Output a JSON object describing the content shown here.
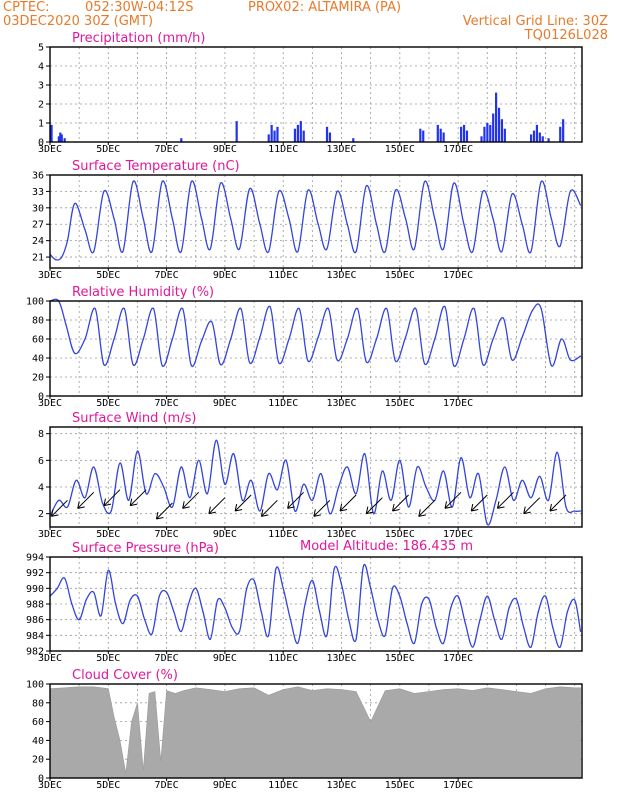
{
  "header": {
    "org": "CPTEC:",
    "coords": "052:30W-04:12S",
    "station": "PROX02: ALTAMIRA (PA)",
    "run": "03DEC2020 30Z (GMT)",
    "grid_note": "Vertical Grid Line: 30Z",
    "code": "TQ0126L028",
    "model_altitude": "Model Altitude: 186.435 m"
  },
  "date_labels": [
    "3DEC",
    "5DEC",
    "7DEC",
    "9DEC",
    "11DEC",
    "13DEC",
    "15DEC",
    "17DEC"
  ],
  "colors": {
    "line": "#3344dd",
    "bar": "#2233ee",
    "cloud": "#a9a9a9",
    "title": "#e0189a",
    "header": "#e87a2a"
  },
  "chart_data": [
    {
      "type": "bar",
      "title": "Precipitation (mm/h)",
      "ylim": [
        0,
        5
      ],
      "yticks": [
        "0",
        "1",
        "2",
        "3",
        "4",
        "5"
      ],
      "x_unit": "days since 03DEC 03Z",
      "x": [
        0.05,
        0.3,
        0.35,
        0.4,
        0.5,
        4.5,
        6.4,
        7.5,
        7.6,
        7.7,
        7.8,
        8.4,
        8.5,
        8.6,
        8.7,
        9.5,
        9.6,
        10.4,
        12.7,
        12.8,
        13.3,
        13.4,
        13.5,
        14.1,
        14.2,
        14.3,
        14.8,
        14.9,
        15.0,
        15.1,
        15.2,
        15.3,
        15.4,
        15.5,
        15.6,
        16.5,
        16.6,
        16.7,
        16.8,
        16.9,
        17.1,
        17.5,
        17.6
      ],
      "values": [
        0.9,
        0.3,
        0.5,
        0.4,
        0.2,
        0.2,
        1.1,
        0.4,
        0.9,
        0.6,
        0.8,
        0.7,
        0.9,
        1.1,
        0.6,
        0.8,
        0.5,
        0.2,
        0.7,
        0.6,
        0.9,
        0.7,
        0.5,
        0.8,
        0.9,
        0.6,
        0.3,
        0.8,
        1.0,
        0.9,
        1.5,
        2.6,
        1.8,
        1.2,
        0.7,
        0.4,
        0.6,
        0.9,
        0.5,
        0.3,
        0.2,
        0.8,
        1.2
      ]
    },
    {
      "type": "line",
      "title": "Surface Temperature (nC)",
      "ylim": [
        19,
        36
      ],
      "yticks": [
        "21",
        "24",
        "27",
        "30",
        "33",
        "36"
      ],
      "x_unit": "days since 03DEC 03Z",
      "x": [
        0,
        0.2,
        0.4,
        0.6,
        0.85,
        1.2,
        1.5,
        1.85,
        2.2,
        2.5,
        2.85,
        3.2,
        3.5,
        3.85,
        4.2,
        4.5,
        4.85,
        5.2,
        5.5,
        5.85,
        6.2,
        6.5,
        6.85,
        7.2,
        7.5,
        7.85,
        8.2,
        8.5,
        8.85,
        9.2,
        9.5,
        9.85,
        10.2,
        10.5,
        10.85,
        11.2,
        11.5,
        11.85,
        12.2,
        12.5,
        12.85,
        13.2,
        13.5,
        13.85,
        14.2,
        14.5,
        14.85,
        15.2,
        15.5,
        15.85,
        16.2,
        16.5,
        16.85,
        17.2,
        17.5,
        17.85,
        18.2
      ],
      "values": [
        21.5,
        20.5,
        21,
        24,
        30.8,
        26,
        22,
        33,
        28,
        22,
        34.8,
        28,
        22,
        34.8,
        28,
        22,
        34.8,
        28,
        22.5,
        34.5,
        28,
        22.5,
        33.5,
        27,
        22,
        33,
        28,
        22,
        33.2,
        27,
        22.5,
        33,
        27,
        22,
        34,
        27,
        22,
        33.2,
        28,
        22.5,
        34.8,
        28,
        22.5,
        34.5,
        27,
        22,
        33,
        28,
        22,
        32.5,
        27,
        22,
        34.8,
        28,
        23,
        33,
        30.5
      ]
    },
    {
      "type": "line",
      "title": "Relative Humidity (%)",
      "ylim": [
        0,
        100
      ],
      "yticks": [
        "0",
        "20",
        "40",
        "60",
        "80",
        "100"
      ],
      "x_unit": "days since 03DEC 03Z",
      "x": [
        0,
        0.3,
        0.55,
        0.85,
        1.2,
        1.55,
        1.85,
        2.2,
        2.55,
        2.85,
        3.2,
        3.55,
        3.85,
        4.2,
        4.55,
        4.85,
        5.2,
        5.55,
        5.85,
        6.2,
        6.55,
        6.85,
        7.2,
        7.55,
        7.85,
        8.2,
        8.55,
        8.85,
        9.2,
        9.55,
        9.85,
        10.2,
        10.55,
        10.85,
        11.2,
        11.55,
        11.85,
        12.2,
        12.55,
        12.85,
        13.2,
        13.55,
        13.85,
        14.2,
        14.55,
        14.85,
        15.2,
        15.55,
        15.85,
        16.2,
        16.55,
        16.85,
        17.2,
        17.55,
        17.85,
        18.2
      ],
      "values": [
        100,
        100,
        75,
        45,
        60,
        92,
        33,
        60,
        92,
        33,
        60,
        92,
        32,
        60,
        92,
        32,
        58,
        78,
        33,
        60,
        92,
        35,
        62,
        94,
        35,
        60,
        92,
        37,
        62,
        92,
        38,
        60,
        92,
        36,
        60,
        92,
        37,
        62,
        92,
        34,
        60,
        94,
        32,
        60,
        92,
        33,
        60,
        82,
        38,
        62,
        90,
        92,
        32,
        60,
        38,
        42
      ]
    },
    {
      "type": "line",
      "title": "Surface Wind (m/s)",
      "ylim": [
        1,
        8.5
      ],
      "yticks": [
        "2",
        "4",
        "6",
        "8"
      ],
      "x_unit": "days since 03DEC 03Z",
      "x": [
        0,
        0.3,
        0.6,
        0.9,
        1.2,
        1.5,
        1.8,
        2.1,
        2.4,
        2.7,
        3.0,
        3.3,
        3.6,
        3.9,
        4.2,
        4.5,
        4.8,
        5.1,
        5.4,
        5.7,
        6.0,
        6.3,
        6.6,
        6.9,
        7.2,
        7.5,
        7.8,
        8.1,
        8.4,
        8.7,
        9.0,
        9.3,
        9.6,
        9.9,
        10.2,
        10.5,
        10.8,
        11.1,
        11.4,
        11.7,
        12.0,
        12.3,
        12.6,
        12.9,
        13.2,
        13.5,
        13.8,
        14.1,
        14.4,
        14.7,
        15.0,
        15.3,
        15.6,
        15.9,
        16.2,
        16.5,
        16.8,
        17.1,
        17.4,
        17.7,
        18.0,
        18.2
      ],
      "values": [
        1.8,
        3.0,
        2.5,
        4.5,
        3.2,
        5.5,
        2.8,
        2.2,
        5.8,
        3.0,
        6.7,
        3.5,
        5.0,
        4.0,
        2.5,
        5.5,
        3.2,
        6.0,
        3.5,
        7.5,
        4.2,
        6.5,
        3.0,
        4.5,
        2.2,
        5.0,
        3.8,
        6.0,
        2.2,
        4.2,
        3.0,
        5.0,
        2.0,
        4.0,
        5.5,
        3.5,
        6.5,
        2.0,
        5.2,
        3.0,
        6.0,
        2.5,
        5.5,
        4.0,
        3.0,
        5.2,
        2.5,
        6.2,
        3.2,
        5.0,
        1.2,
        3.0,
        5.5,
        3.0,
        4.5,
        3.2,
        4.8,
        3.0,
        6.6,
        2.5,
        2.2,
        2.2
      ],
      "arrows_x": [
        0.6,
        1.5,
        2.4,
        3.3,
        4.2,
        5.1,
        6.0,
        6.9,
        7.8,
        8.7,
        9.6,
        10.5,
        11.4,
        12.3,
        13.2,
        14.1,
        15.0,
        15.9,
        16.8,
        17.7
      ],
      "arrows_y": [
        3.0,
        3.6,
        3.8,
        3.8,
        2.8,
        3.6,
        3.2,
        3.4,
        3.0,
        3.6,
        3.0,
        3.4,
        3.2,
        3.4,
        3.0,
        3.6,
        3.4,
        3.6,
        3.2,
        3.4
      ]
    },
    {
      "type": "line",
      "title": "Surface Pressure (hPa)",
      "ylim": [
        982,
        994
      ],
      "yticks": [
        "982",
        "984",
        "986",
        "988",
        "990",
        "992",
        "994"
      ],
      "x_unit": "days since 03DEC 03Z",
      "x": [
        0,
        0.25,
        0.5,
        0.75,
        1.0,
        1.25,
        1.5,
        1.75,
        2.0,
        2.25,
        2.5,
        2.75,
        3.0,
        3.25,
        3.5,
        3.75,
        4.0,
        4.25,
        4.5,
        4.75,
        5.0,
        5.25,
        5.5,
        5.75,
        6.0,
        6.25,
        6.5,
        6.75,
        7.0,
        7.25,
        7.5,
        7.75,
        8.0,
        8.25,
        8.5,
        8.75,
        9.0,
        9.25,
        9.5,
        9.75,
        10.0,
        10.25,
        10.5,
        10.75,
        11.0,
        11.25,
        11.5,
        11.75,
        12.0,
        12.25,
        12.5,
        12.75,
        13.0,
        13.25,
        13.5,
        13.75,
        14.0,
        14.25,
        14.5,
        14.75,
        15.0,
        15.25,
        15.5,
        15.75,
        16.0,
        16.25,
        16.5,
        16.75,
        17.0,
        17.25,
        17.5,
        17.75,
        18.0,
        18.2
      ],
      "values": [
        989,
        990,
        991.3,
        988,
        986,
        988.6,
        989.5,
        986.5,
        992.3,
        988,
        985.5,
        988.5,
        989,
        986,
        984.2,
        989,
        989.5,
        987,
        984.5,
        988,
        990,
        987,
        983.5,
        988.5,
        987.5,
        985,
        984.5,
        990,
        991,
        987,
        984,
        992.5,
        990,
        986,
        983,
        988,
        991,
        987,
        984,
        992.5,
        990.5,
        986,
        983.5,
        992.8,
        990,
        986,
        984,
        990,
        989,
        985.5,
        983,
        988,
        988.6,
        985,
        983,
        987.5,
        989,
        985.5,
        982.5,
        986,
        989,
        986,
        983.5,
        987.5,
        988.6,
        985,
        982.5,
        987,
        989,
        985,
        982.5,
        987,
        988.5,
        984.5
      ]
    },
    {
      "type": "area",
      "title": "Cloud Cover (%)",
      "ylim": [
        0,
        100
      ],
      "yticks": [
        "0",
        "20",
        "40",
        "60",
        "80",
        "100"
      ],
      "x_unit": "days since 03DEC 03Z",
      "x": [
        0,
        0.5,
        1.0,
        1.5,
        2.0,
        2.2,
        2.4,
        2.6,
        2.8,
        3.0,
        3.2,
        3.4,
        3.6,
        3.8,
        4.0,
        4.3,
        4.6,
        5.0,
        5.5,
        6.0,
        6.5,
        7.0,
        7.5,
        8.0,
        8.5,
        9.0,
        9.5,
        10.0,
        10.5,
        11.0,
        11.5,
        12.0,
        12.5,
        13.0,
        13.5,
        14.0,
        14.5,
        15.0,
        15.5,
        16.0,
        16.5,
        17.0,
        17.5,
        18.0,
        18.2
      ],
      "values": [
        95,
        96,
        97,
        97,
        95,
        65,
        40,
        5,
        60,
        80,
        8,
        90,
        92,
        18,
        93,
        90,
        93,
        96,
        94,
        92,
        95,
        96,
        88,
        94,
        97,
        93,
        95,
        94,
        92,
        60,
        93,
        95,
        90,
        92,
        94,
        95,
        93,
        96,
        94,
        92,
        90,
        95,
        97,
        96,
        96
      ]
    }
  ]
}
